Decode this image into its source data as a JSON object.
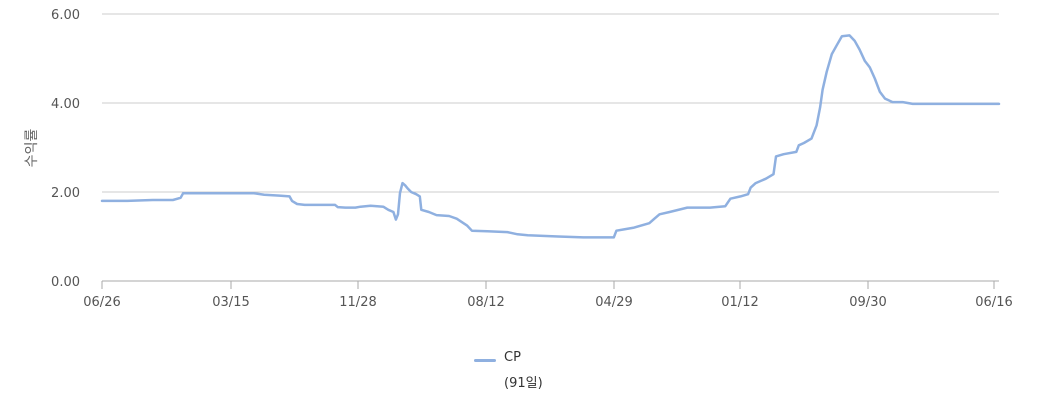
{
  "chart_data": {
    "type": "line",
    "xlabel": "",
    "ylabel": "수익률",
    "ylim": [
      0,
      6
    ],
    "yticks": [
      "0.00",
      "2.00",
      "4.00",
      "6.00"
    ],
    "xticks": [
      "06/26",
      "03/15",
      "11/28",
      "08/12",
      "04/29",
      "01/12",
      "09/30",
      "06/16"
    ],
    "grid": true,
    "legend_position": "bottom",
    "colors": {
      "line": "#8fb0e0",
      "grid": "#cccccc",
      "axis": "#aaaaaa"
    },
    "series": [
      {
        "name": "CP",
        "note": "(91일)",
        "points": [
          [
            0,
            1.8
          ],
          [
            0.5,
            1.8
          ],
          [
            1.0,
            1.82
          ],
          [
            1.4,
            1.82
          ],
          [
            1.55,
            1.87
          ],
          [
            1.6,
            1.97
          ],
          [
            2.5,
            1.97
          ],
          [
            3.0,
            1.97
          ],
          [
            3.2,
            1.94
          ],
          [
            3.5,
            1.92
          ],
          [
            3.7,
            1.9
          ],
          [
            3.75,
            1.8
          ],
          [
            3.85,
            1.73
          ],
          [
            4.0,
            1.71
          ],
          [
            4.6,
            1.71
          ],
          [
            4.65,
            1.66
          ],
          [
            4.8,
            1.65
          ],
          [
            5.0,
            1.65
          ],
          [
            5.1,
            1.67
          ],
          [
            5.3,
            1.69
          ],
          [
            5.55,
            1.67
          ],
          [
            5.65,
            1.6
          ],
          [
            5.75,
            1.55
          ],
          [
            5.8,
            1.38
          ],
          [
            5.84,
            1.5
          ],
          [
            5.88,
            1.98
          ],
          [
            5.93,
            2.2
          ],
          [
            5.98,
            2.15
          ],
          [
            6.03,
            2.08
          ],
          [
            6.1,
            2.0
          ],
          [
            6.2,
            1.95
          ],
          [
            6.27,
            1.9
          ],
          [
            6.3,
            1.6
          ],
          [
            6.45,
            1.55
          ],
          [
            6.6,
            1.48
          ],
          [
            6.85,
            1.46
          ],
          [
            7.0,
            1.4
          ],
          [
            7.2,
            1.25
          ],
          [
            7.3,
            1.13
          ],
          [
            7.6,
            1.12
          ],
          [
            8.0,
            1.1
          ],
          [
            8.2,
            1.05
          ],
          [
            8.4,
            1.03
          ],
          [
            9.0,
            1.0
          ],
          [
            9.5,
            0.98
          ],
          [
            10.1,
            0.98
          ],
          [
            10.15,
            1.13
          ],
          [
            10.3,
            1.16
          ],
          [
            10.5,
            1.2
          ],
          [
            10.8,
            1.3
          ],
          [
            10.9,
            1.4
          ],
          [
            11.0,
            1.5
          ],
          [
            11.2,
            1.55
          ],
          [
            11.55,
            1.65
          ],
          [
            12.0,
            1.65
          ],
          [
            12.3,
            1.68
          ],
          [
            12.4,
            1.85
          ],
          [
            12.6,
            1.9
          ],
          [
            12.75,
            1.95
          ],
          [
            12.8,
            2.1
          ],
          [
            12.9,
            2.2
          ],
          [
            13.1,
            2.3
          ],
          [
            13.25,
            2.4
          ],
          [
            13.3,
            2.8
          ],
          [
            13.45,
            2.85
          ],
          [
            13.7,
            2.9
          ],
          [
            13.75,
            3.05
          ],
          [
            13.85,
            3.1
          ],
          [
            14.0,
            3.2
          ],
          [
            14.1,
            3.5
          ],
          [
            14.17,
            3.9
          ],
          [
            14.22,
            4.3
          ],
          [
            14.3,
            4.7
          ],
          [
            14.4,
            5.1
          ],
          [
            14.5,
            5.3
          ],
          [
            14.6,
            5.5
          ],
          [
            14.75,
            5.52
          ],
          [
            14.85,
            5.4
          ],
          [
            14.95,
            5.2
          ],
          [
            15.05,
            4.95
          ],
          [
            15.15,
            4.8
          ],
          [
            15.25,
            4.55
          ],
          [
            15.35,
            4.25
          ],
          [
            15.45,
            4.1
          ],
          [
            15.6,
            4.02
          ],
          [
            15.8,
            4.02
          ],
          [
            16.0,
            3.98
          ],
          [
            17.0,
            3.98
          ],
          [
            17.7,
            3.98
          ]
        ]
      }
    ]
  }
}
